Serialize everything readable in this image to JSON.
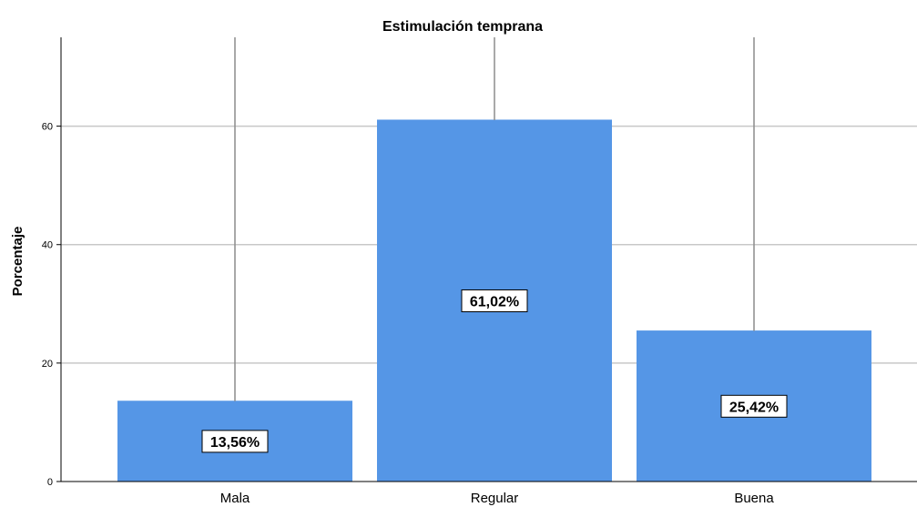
{
  "chart_data": {
    "type": "bar",
    "title": "Estimulación temprana",
    "xlabel": "",
    "ylabel": "Porcentaje",
    "categories": [
      "Mala",
      "Regular",
      "Buena"
    ],
    "values": [
      13.56,
      61.02,
      25.42
    ],
    "data_labels": [
      "13,56%",
      "61,02%",
      "25,42%"
    ],
    "yticks": [
      0,
      20,
      40,
      60
    ],
    "ytick_labels": [
      "0",
      "20",
      "40",
      "60"
    ],
    "ylim": [
      0,
      75
    ],
    "grid": true,
    "bar_color": "#5596e6",
    "grid_color": "#c8c8c8",
    "error_line_color": "#8c8c8c"
  }
}
